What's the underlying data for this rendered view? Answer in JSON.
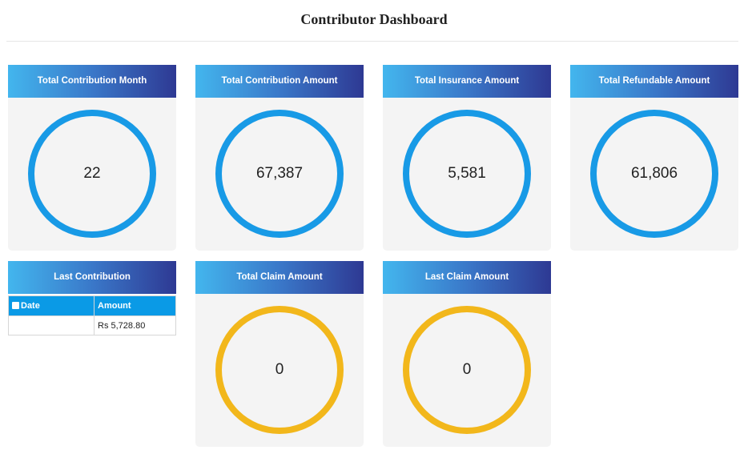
{
  "header": {
    "title": "Contributor Dashboard"
  },
  "cards": [
    {
      "title": "Total Contribution Month",
      "value": "22"
    },
    {
      "title": "Total Contribution Amount",
      "value": "67,387"
    },
    {
      "title": "Total Insurance Amount",
      "value": "5,581"
    },
    {
      "title": "Total Refundable Amount",
      "value": "61,806"
    },
    {
      "title": "Total Claim Amount",
      "value": "0"
    },
    {
      "title": "Last Claim Amount",
      "value": "0"
    }
  ],
  "last_contribution": {
    "title": "Last Contribution",
    "table": {
      "columns": [
        "Date",
        "Amount"
      ],
      "rows": [
        {
          "amount": "Rs 5,728.80"
        }
      ]
    }
  }
}
